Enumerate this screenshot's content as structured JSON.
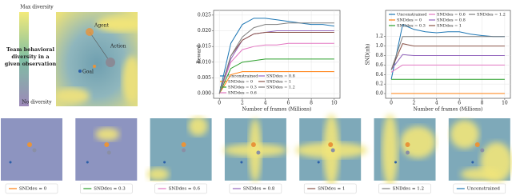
{
  "illustration": {
    "max_label": "Max diversity",
    "no_label": "No diversity",
    "caption": [
      "Team behavioral",
      "diversity in a",
      "given observation"
    ],
    "agent": "Agent",
    "action": "Action",
    "goal": "Goal"
  },
  "chart_data": [
    {
      "type": "line",
      "xlabel": "Number of frames (Millions)",
      "ylabel": "Reward",
      "x": [
        0,
        1,
        2,
        3,
        4,
        5,
        6,
        7,
        8,
        9,
        10
      ],
      "xlim": [
        -0.5,
        10.5
      ],
      "xticks": [
        0,
        2,
        4,
        6,
        8,
        10
      ],
      "ylim": [
        -0.0015,
        0.0265
      ],
      "yticks": [
        {
          "value": 0,
          "label": "0.000"
        },
        0.005,
        {
          "value": 0.01,
          "label": "0.010"
        },
        0.015,
        {
          "value": 0.02,
          "label": "0.020"
        },
        0.025
      ],
      "grid": true,
      "series": [
        {
          "name": "Unconstrained",
          "color": "#1f77b4",
          "values": [
            0,
            0.016,
            0.022,
            0.024,
            0.024,
            0.0235,
            0.023,
            0.0225,
            0.022,
            0.022,
            0.0215
          ]
        },
        {
          "name": "SNDdes = 0",
          "color": "#ff7f0e",
          "values": [
            0,
            0.006,
            0.007,
            0.007,
            0.007,
            0.007,
            0.007,
            0.007,
            0.007,
            0.007,
            0.007
          ]
        },
        {
          "name": "SNDdes = 0.3",
          "color": "#2ca02c",
          "values": [
            0,
            0.008,
            0.01,
            0.0105,
            0.011,
            0.011,
            0.011,
            0.011,
            0.011,
            0.011,
            0.011
          ]
        },
        {
          "name": "SNDdes = 0.6",
          "color": "#e377c2",
          "values": [
            0,
            0.01,
            0.014,
            0.015,
            0.0155,
            0.0155,
            0.016,
            0.016,
            0.016,
            0.016,
            0.016
          ]
        },
        {
          "name": "SNDdes = 0.8",
          "color": "#9467bd",
          "values": [
            0,
            0.011,
            0.017,
            0.019,
            0.0195,
            0.02,
            0.02,
            0.02,
            0.02,
            0.02,
            0.02
          ]
        },
        {
          "name": "SNDdes = 1",
          "color": "#8c564b",
          "values": [
            0,
            0.012,
            0.017,
            0.019,
            0.0195,
            0.0195,
            0.0195,
            0.0195,
            0.0195,
            0.0195,
            0.0195
          ]
        },
        {
          "name": "SNDdes = 1.2",
          "color": "#7f7f7f",
          "values": [
            0,
            0.012,
            0.018,
            0.021,
            0.022,
            0.022,
            0.0225,
            0.0225,
            0.0225,
            0.0225,
            0.0225
          ]
        }
      ]
    },
    {
      "type": "line",
      "xlabel": "Number of frames (Millions)",
      "ylabel": "SND(πh)",
      "x": [
        0,
        1,
        2,
        3,
        4,
        5,
        6,
        7,
        8,
        9,
        10
      ],
      "xlim": [
        -0.5,
        10.5
      ],
      "xticks": [
        0,
        2,
        4,
        6,
        8,
        10
      ],
      "ylim": [
        -0.1,
        1.75
      ],
      "yticks": [
        {
          "value": 0,
          "label": "0.0"
        },
        0.2,
        0.4,
        0.6,
        0.8,
        {
          "value": 1,
          "label": "1.0"
        },
        1.2
      ],
      "grid": true,
      "series": [
        {
          "name": "Unconstrained",
          "color": "#1f77b4",
          "values": [
            0.3,
            1.45,
            1.35,
            1.3,
            1.28,
            1.3,
            1.3,
            1.25,
            1.22,
            1.2,
            1.2
          ]
        },
        {
          "name": "SNDdes = 0",
          "color": "#ff7f0e",
          "values": [
            0,
            0,
            0,
            0,
            0,
            0,
            0,
            0,
            0,
            0,
            0
          ]
        },
        {
          "name": "SNDdes = 0.3",
          "color": "#2ca02c",
          "values": [
            0.3,
            0.3,
            0.3,
            0.3,
            0.3,
            0.3,
            0.3,
            0.3,
            0.3,
            0.3,
            0.3
          ]
        },
        {
          "name": "SNDdes = 0.6",
          "color": "#e377c2",
          "values": [
            0.45,
            0.6,
            0.6,
            0.6,
            0.6,
            0.6,
            0.6,
            0.6,
            0.6,
            0.6,
            0.6
          ]
        },
        {
          "name": "SNDdes = 0.8",
          "color": "#9467bd",
          "values": [
            0.5,
            0.82,
            0.8,
            0.8,
            0.8,
            0.8,
            0.8,
            0.8,
            0.8,
            0.8,
            0.8
          ]
        },
        {
          "name": "SNDdes = 1",
          "color": "#8c564b",
          "values": [
            0.5,
            1.05,
            1.0,
            1.0,
            1.0,
            1.0,
            1.0,
            1.0,
            1.0,
            1.0,
            1.0
          ]
        },
        {
          "name": "SNDdes = 1.2",
          "color": "#7f7f7f",
          "values": [
            0.5,
            1.2,
            1.2,
            1.2,
            1.2,
            1.2,
            1.2,
            1.2,
            1.2,
            1.2,
            1.2
          ]
        }
      ]
    }
  ]
}
